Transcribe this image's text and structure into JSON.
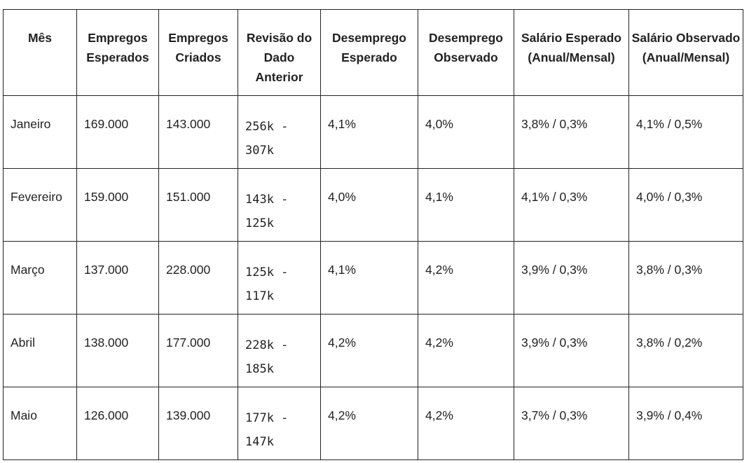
{
  "table": {
    "headers": [
      "Mês",
      "Empregos Esperados",
      "Empregos Criados",
      "Revisão do Dado Anterior",
      "Desemprego Esperado",
      "Desemprego Observado",
      "Salário Esperado (Anual/Mensal)",
      "Salário Observado (Anual/Mensal)"
    ],
    "rows": [
      [
        "Janeiro",
        "169.000",
        "143.000",
        "256k - 307k",
        "4,1%",
        "4,0%",
        "3,8% / 0,3%",
        "4,1% / 0,5%"
      ],
      [
        "Fevereiro",
        "159.000",
        "151.000",
        "143k - 125k",
        "4,0%",
        "4,1%",
        "4,1% / 0,3%",
        "4,0% / 0,3%"
      ],
      [
        "Março",
        "137.000",
        "228.000",
        "125k - 117k",
        "4,1%",
        "4,2%",
        "3,9% / 0,3%",
        "3,8% / 0,3%"
      ],
      [
        "Abril",
        "138.000",
        "177.000",
        "228k - 185k",
        "4,2%",
        "4,2%",
        "3,9% / 0,3%",
        "3,8% / 0,2%"
      ],
      [
        "Maio",
        "126.000",
        "139.000",
        "177k - 147k",
        "4,2%",
        "4,2%",
        "3,7% / 0,3%",
        "3,9% / 0,4%"
      ]
    ]
  }
}
